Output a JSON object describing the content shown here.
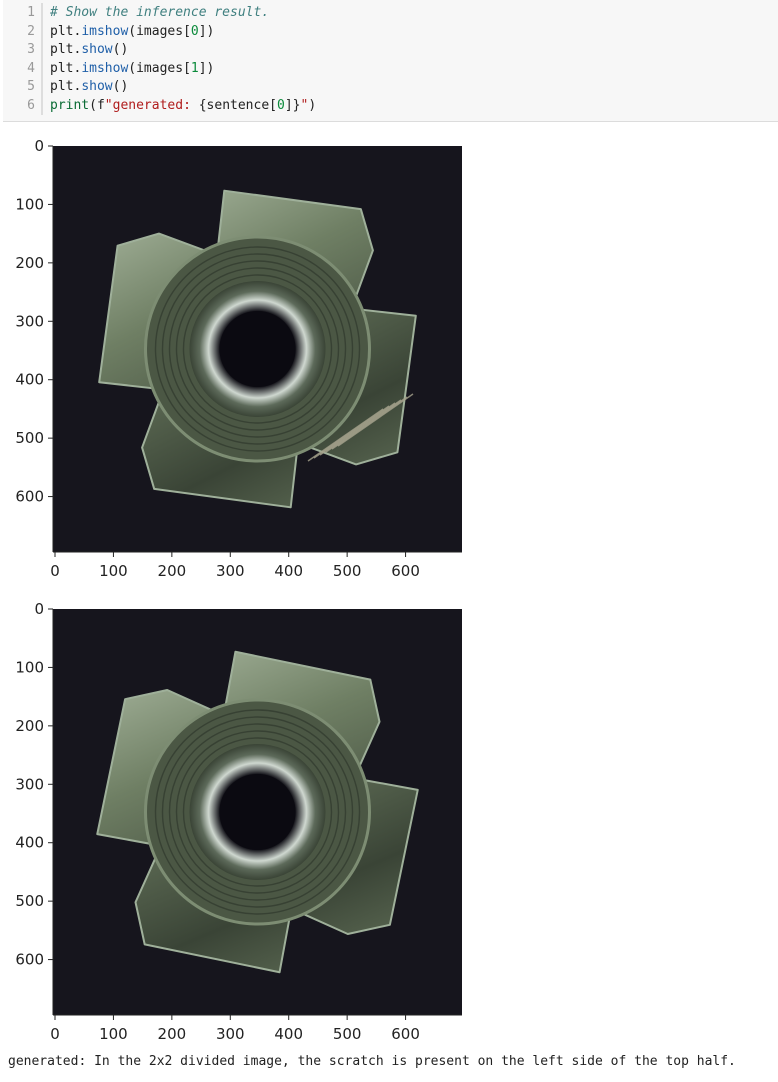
{
  "code_cell": {
    "lines": [
      {
        "num": "1",
        "tokens": [
          {
            "t": "# Show the inference result.",
            "k": "comment"
          }
        ]
      },
      {
        "num": "2",
        "tokens": [
          {
            "t": "plt.",
            "k": "plain"
          },
          {
            "t": "imshow",
            "k": "call"
          },
          {
            "t": "(images[",
            "k": "plain"
          },
          {
            "t": "0",
            "k": "num"
          },
          {
            "t": "])",
            "k": "plain"
          }
        ]
      },
      {
        "num": "3",
        "tokens": [
          {
            "t": "plt.",
            "k": "plain"
          },
          {
            "t": "show",
            "k": "call"
          },
          {
            "t": "()",
            "k": "plain"
          }
        ]
      },
      {
        "num": "4",
        "tokens": [
          {
            "t": "plt.",
            "k": "plain"
          },
          {
            "t": "imshow",
            "k": "call"
          },
          {
            "t": "(images[",
            "k": "plain"
          },
          {
            "t": "1",
            "k": "num"
          },
          {
            "t": "])",
            "k": "plain"
          }
        ]
      },
      {
        "num": "5",
        "tokens": [
          {
            "t": "plt.",
            "k": "plain"
          },
          {
            "t": "show",
            "k": "call"
          },
          {
            "t": "()",
            "k": "plain"
          }
        ]
      },
      {
        "num": "6",
        "tokens": [
          {
            "t": "print",
            "k": "builtin"
          },
          {
            "t": "(f",
            "k": "plain"
          },
          {
            "t": "\"generated: ",
            "k": "str"
          },
          {
            "t": "{sentence[",
            "k": "plain"
          },
          {
            "t": "0",
            "k": "num"
          },
          {
            "t": "]}",
            "k": "plain"
          },
          {
            "t": "\"",
            "k": "str"
          },
          {
            "t": ")",
            "k": "plain"
          }
        ]
      }
    ]
  },
  "plots": [
    {
      "image_description": "metal tee nut with four prongs on dark background, scratch on lower right area",
      "has_scratch": true,
      "rotation_deg": 18,
      "x_ticks": [
        "0",
        "100",
        "200",
        "300",
        "400",
        "500",
        "600"
      ],
      "y_ticks": [
        "0",
        "100",
        "200",
        "300",
        "400",
        "500",
        "600"
      ]
    },
    {
      "image_description": "metal tee nut with four prongs on dark background",
      "has_scratch": false,
      "rotation_deg": 22,
      "x_ticks": [
        "0",
        "100",
        "200",
        "300",
        "400",
        "500",
        "600"
      ],
      "y_ticks": [
        "0",
        "100",
        "200",
        "300",
        "400",
        "500",
        "600"
      ]
    }
  ],
  "output": {
    "text": "generated: In the 2x2 divided image, the scratch is present on the left side of the top half."
  },
  "colors": {
    "cell_bg": "#f7f7f7",
    "image_bg": "#16151d",
    "metal_dark": "#3a4436",
    "metal_mid": "#6f7f64",
    "metal_light": "#b9c7b0"
  }
}
